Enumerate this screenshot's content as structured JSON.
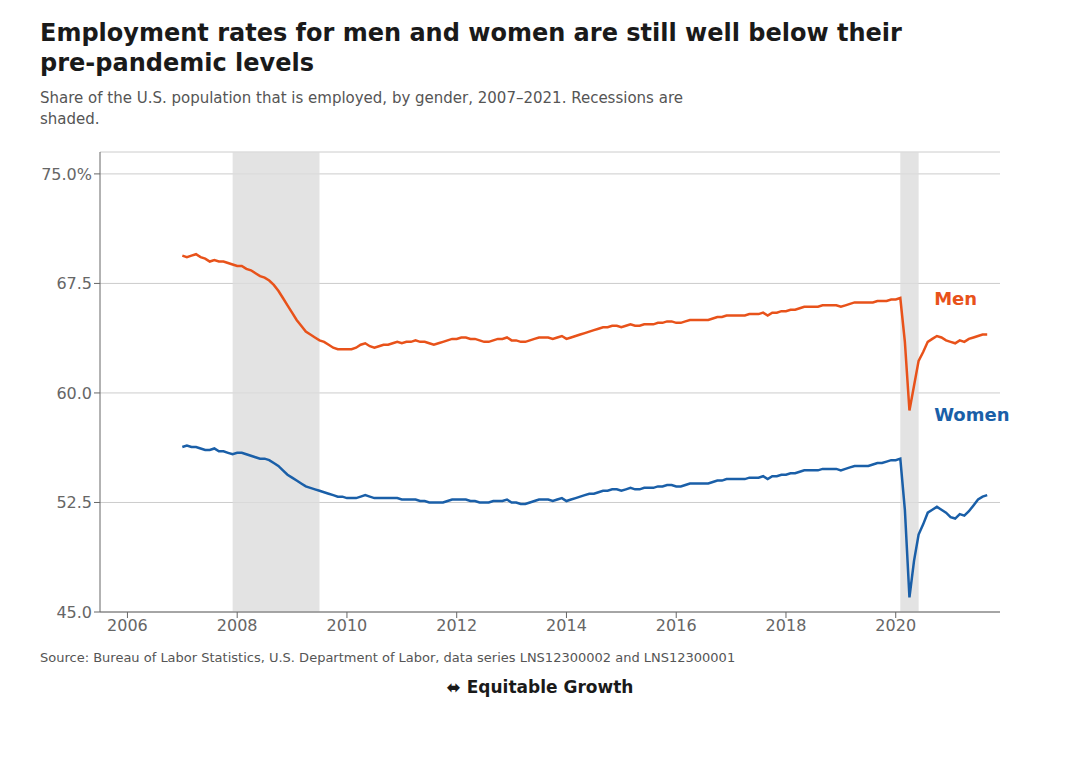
{
  "chart_data": {
    "type": "line",
    "title": "Employment rates for men and women are still well below their\npre-pandemic levels",
    "subtitle": "Share of the U.S. population that is employed, by gender, 2007–2021. Recessions are\nshaded.",
    "source": "Source: Bureau of Labor Statistics, U.S. Department of Labor, data series LNS12300002 and LNS12300001",
    "credit": "⬌ Equitable Growth",
    "grid": true,
    "xlim": [
      2005.5,
      2021.9
    ],
    "xticks": [
      2006,
      2008,
      2010,
      2012,
      2014,
      2016,
      2018,
      2020
    ],
    "ylim": [
      45.0,
      76.5
    ],
    "yticks": [
      {
        "value": 45.0,
        "label": "45.0"
      },
      52.5,
      {
        "value": 60.0,
        "label": "60.0"
      },
      67.5,
      {
        "value": 75.0,
        "label": "75.0%"
      }
    ],
    "recessions": [
      [
        2007.917,
        2009.5
      ],
      [
        2020.083,
        2020.417
      ]
    ],
    "annotations": [
      {
        "text": "Men",
        "x": 2020.7,
        "y": 66.5,
        "color": "#e8521a"
      },
      {
        "text": "Women",
        "x": 2020.7,
        "y": 58.5,
        "color": "#1a5fa8"
      }
    ],
    "x": [
      2007,
      2007.0833333333333,
      2007.1666666666667,
      2007.25,
      2007.3333333333333,
      2007.4166666666667,
      2007.5,
      2007.5833333333333,
      2007.6666666666667,
      2007.75,
      2007.8333333333333,
      2007.9166666666667,
      2008,
      2008.0833333333333,
      2008.1666666666667,
      2008.25,
      2008.3333333333333,
      2008.4166666666667,
      2008.5,
      2008.5833333333333,
      2008.6666666666667,
      2008.75,
      2008.8333333333333,
      2008.9166666666667,
      2009,
      2009.0833333333333,
      2009.1666666666667,
      2009.25,
      2009.3333333333333,
      2009.4166666666667,
      2009.5,
      2009.5833333333333,
      2009.6666666666667,
      2009.75,
      2009.8333333333333,
      2009.9166666666667,
      2010,
      2010.0833333333333,
      2010.1666666666667,
      2010.25,
      2010.3333333333333,
      2010.4166666666667,
      2010.5,
      2010.5833333333333,
      2010.6666666666667,
      2010.75,
      2010.8333333333333,
      2010.9166666666667,
      2011,
      2011.0833333333333,
      2011.1666666666667,
      2011.25,
      2011.3333333333333,
      2011.4166666666667,
      2011.5,
      2011.5833333333333,
      2011.6666666666667,
      2011.75,
      2011.8333333333333,
      2011.9166666666667,
      2012,
      2012.0833333333333,
      2012.1666666666667,
      2012.25,
      2012.3333333333333,
      2012.4166666666667,
      2012.5,
      2012.5833333333333,
      2012.6666666666667,
      2012.75,
      2012.8333333333333,
      2012.9166666666667,
      2013,
      2013.0833333333333,
      2013.1666666666667,
      2013.25,
      2013.3333333333333,
      2013.4166666666667,
      2013.5,
      2013.5833333333333,
      2013.6666666666667,
      2013.75,
      2013.8333333333333,
      2013.9166666666667,
      2014,
      2014.0833333333333,
      2014.1666666666667,
      2014.25,
      2014.3333333333333,
      2014.4166666666667,
      2014.5,
      2014.5833333333333,
      2014.6666666666667,
      2014.75,
      2014.8333333333333,
      2014.9166666666667,
      2015,
      2015.0833333333333,
      2015.1666666666667,
      2015.25,
      2015.3333333333333,
      2015.4166666666667,
      2015.5,
      2015.5833333333333,
      2015.6666666666667,
      2015.75,
      2015.8333333333333,
      2015.9166666666667,
      2016,
      2016.0833333333333,
      2016.1666666666667,
      2016.25,
      2016.3333333333333,
      2016.4166666666667,
      2016.5,
      2016.5833333333333,
      2016.6666666666667,
      2016.75,
      2016.8333333333333,
      2016.9166666666667,
      2017,
      2017.0833333333333,
      2017.1666666666667,
      2017.25,
      2017.3333333333333,
      2017.4166666666667,
      2017.5,
      2017.5833333333333,
      2017.6666666666667,
      2017.75,
      2017.8333333333333,
      2017.9166666666667,
      2018,
      2018.0833333333333,
      2018.1666666666667,
      2018.25,
      2018.3333333333333,
      2018.4166666666667,
      2018.5,
      2018.5833333333333,
      2018.6666666666667,
      2018.75,
      2018.8333333333333,
      2018.9166666666667,
      2019,
      2019.0833333333333,
      2019.1666666666667,
      2019.25,
      2019.3333333333333,
      2019.4166666666667,
      2019.5,
      2019.5833333333333,
      2019.6666666666667,
      2019.75,
      2019.8333333333333,
      2019.9166666666667,
      2020,
      2020.0833333333333,
      2020.1666666666667,
      2020.25,
      2020.3333333333333,
      2020.4166666666667,
      2020.5,
      2020.5833333333333,
      2020.6666666666667,
      2020.75,
      2020.8333333333333,
      2020.9166666666667,
      2021,
      2021.0833333333333,
      2021.1666666666667,
      2021.25,
      2021.3333333333333,
      2021.4166666666667,
      2021.5,
      2021.5833333333333,
      2021.6666666666667
    ],
    "series": [
      {
        "name": "Men",
        "color": "#e8521a",
        "values": [
          69.4,
          69.3,
          69.4,
          69.5,
          69.3,
          69.2,
          69.0,
          69.1,
          69.0,
          69.0,
          68.9,
          68.8,
          68.7,
          68.7,
          68.5,
          68.4,
          68.2,
          68.0,
          67.9,
          67.7,
          67.4,
          67.0,
          66.5,
          66.0,
          65.5,
          65.0,
          64.6,
          64.2,
          64.0,
          63.8,
          63.6,
          63.5,
          63.3,
          63.1,
          63.0,
          63.0,
          63.0,
          63.0,
          63.1,
          63.3,
          63.4,
          63.2,
          63.1,
          63.2,
          63.3,
          63.3,
          63.4,
          63.5,
          63.4,
          63.5,
          63.5,
          63.6,
          63.5,
          63.5,
          63.4,
          63.3,
          63.4,
          63.5,
          63.6,
          63.7,
          63.7,
          63.8,
          63.8,
          63.7,
          63.7,
          63.6,
          63.5,
          63.5,
          63.6,
          63.7,
          63.7,
          63.8,
          63.6,
          63.6,
          63.5,
          63.5,
          63.6,
          63.7,
          63.8,
          63.8,
          63.8,
          63.7,
          63.8,
          63.9,
          63.7,
          63.8,
          63.9,
          64.0,
          64.1,
          64.2,
          64.3,
          64.4,
          64.5,
          64.5,
          64.6,
          64.6,
          64.5,
          64.6,
          64.7,
          64.6,
          64.6,
          64.7,
          64.7,
          64.7,
          64.8,
          64.8,
          64.9,
          64.9,
          64.8,
          64.8,
          64.9,
          65.0,
          65.0,
          65.0,
          65.0,
          65.0,
          65.1,
          65.2,
          65.2,
          65.3,
          65.3,
          65.3,
          65.3,
          65.3,
          65.4,
          65.4,
          65.4,
          65.5,
          65.3,
          65.5,
          65.5,
          65.6,
          65.6,
          65.7,
          65.7,
          65.8,
          65.9,
          65.9,
          65.9,
          65.9,
          66.0,
          66.0,
          66.0,
          66.0,
          65.9,
          66.0,
          66.1,
          66.2,
          66.2,
          66.2,
          66.2,
          66.2,
          66.3,
          66.3,
          66.3,
          66.4,
          66.4,
          66.5,
          63.5,
          58.8,
          60.5,
          62.2,
          62.8,
          63.5,
          63.7,
          63.9,
          63.8,
          63.6,
          63.5,
          63.4,
          63.6,
          63.5,
          63.7,
          63.8,
          63.9,
          64.0,
          64.0
        ]
      },
      {
        "name": "Women",
        "color": "#1a5fa8",
        "values": [
          56.3,
          56.4,
          56.3,
          56.3,
          56.2,
          56.1,
          56.1,
          56.2,
          56.0,
          56.0,
          55.9,
          55.8,
          55.9,
          55.9,
          55.8,
          55.7,
          55.6,
          55.5,
          55.5,
          55.4,
          55.2,
          55.0,
          54.7,
          54.4,
          54.2,
          54.0,
          53.8,
          53.6,
          53.5,
          53.4,
          53.3,
          53.2,
          53.1,
          53.0,
          52.9,
          52.9,
          52.8,
          52.8,
          52.8,
          52.9,
          53.0,
          52.9,
          52.8,
          52.8,
          52.8,
          52.8,
          52.8,
          52.8,
          52.7,
          52.7,
          52.7,
          52.7,
          52.6,
          52.6,
          52.5,
          52.5,
          52.5,
          52.5,
          52.6,
          52.7,
          52.7,
          52.7,
          52.7,
          52.6,
          52.6,
          52.5,
          52.5,
          52.5,
          52.6,
          52.6,
          52.6,
          52.7,
          52.5,
          52.5,
          52.4,
          52.4,
          52.5,
          52.6,
          52.7,
          52.7,
          52.7,
          52.6,
          52.7,
          52.8,
          52.6,
          52.7,
          52.8,
          52.9,
          53.0,
          53.1,
          53.1,
          53.2,
          53.3,
          53.3,
          53.4,
          53.4,
          53.3,
          53.4,
          53.5,
          53.4,
          53.4,
          53.5,
          53.5,
          53.5,
          53.6,
          53.6,
          53.7,
          53.7,
          53.6,
          53.6,
          53.7,
          53.8,
          53.8,
          53.8,
          53.8,
          53.8,
          53.9,
          54.0,
          54.0,
          54.1,
          54.1,
          54.1,
          54.1,
          54.1,
          54.2,
          54.2,
          54.2,
          54.3,
          54.1,
          54.3,
          54.3,
          54.4,
          54.4,
          54.5,
          54.5,
          54.6,
          54.7,
          54.7,
          54.7,
          54.7,
          54.8,
          54.8,
          54.8,
          54.8,
          54.7,
          54.8,
          54.9,
          55.0,
          55.0,
          55.0,
          55.0,
          55.1,
          55.2,
          55.2,
          55.3,
          55.4,
          55.4,
          55.5,
          52.0,
          46.0,
          48.5,
          50.3,
          51.0,
          51.8,
          52.0,
          52.2,
          52.0,
          51.8,
          51.5,
          51.4,
          51.7,
          51.6,
          51.9,
          52.3,
          52.7,
          52.9,
          53.0
        ]
      }
    ]
  }
}
